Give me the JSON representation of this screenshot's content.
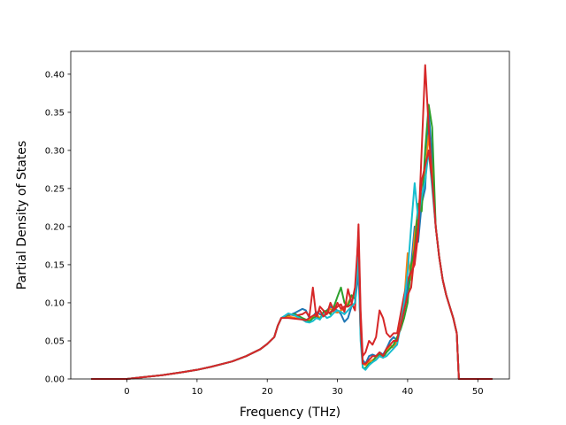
{
  "chart_data": {
    "type": "line",
    "title": "",
    "xlabel": "Frequency (THz)",
    "ylabel": "Partial Density of States",
    "xlim": [
      -8,
      54.5
    ],
    "ylim": [
      0,
      0.43
    ],
    "xticks": [
      0,
      10,
      20,
      30,
      40,
      50
    ],
    "xtick_labels": [
      "0",
      "10",
      "20",
      "30",
      "40",
      "50"
    ],
    "yticks": [
      0.0,
      0.05,
      0.1,
      0.15,
      0.2,
      0.25,
      0.3,
      0.35,
      0.4
    ],
    "ytick_labels": [
      "0.00",
      "0.05",
      "0.10",
      "0.15",
      "0.20",
      "0.25",
      "0.30",
      "0.35",
      "0.40"
    ],
    "grid": false,
    "legend": "none",
    "colors": [
      "#1f77b4",
      "#ff7f0e",
      "#2ca02c",
      "#d62728",
      "#17becf",
      "#d62728"
    ],
    "series": [
      {
        "x": [
          -5,
          0,
          2,
          5,
          8,
          10,
          12,
          15,
          17,
          19,
          20,
          21,
          21.5,
          22,
          23,
          24,
          25,
          25.5,
          26,
          26.5,
          27,
          27.5,
          28,
          28.5,
          29,
          29.5,
          30,
          30.5,
          31,
          31.5,
          32,
          32.5,
          33,
          33.3,
          33.6,
          34,
          34.5,
          35,
          35.5,
          36,
          36.5,
          37,
          37.5,
          38,
          38.5,
          39,
          39.5,
          40,
          40.5,
          41,
          41.5,
          42,
          42.5,
          43,
          43.5,
          44,
          44.5,
          45,
          45.5,
          46,
          46.5,
          47,
          47.3,
          48,
          52
        ],
        "y": [
          0,
          0,
          0.002,
          0.005,
          0.009,
          0.012,
          0.016,
          0.023,
          0.03,
          0.039,
          0.046,
          0.055,
          0.07,
          0.08,
          0.083,
          0.087,
          0.092,
          0.09,
          0.08,
          0.082,
          0.088,
          0.085,
          0.083,
          0.09,
          0.095,
          0.092,
          0.09,
          0.085,
          0.075,
          0.08,
          0.095,
          0.1,
          0.14,
          0.06,
          0.025,
          0.02,
          0.03,
          0.032,
          0.03,
          0.035,
          0.032,
          0.04,
          0.05,
          0.055,
          0.05,
          0.075,
          0.09,
          0.12,
          0.15,
          0.2,
          0.18,
          0.23,
          0.25,
          0.35,
          0.29,
          0.2,
          0.16,
          0.13,
          0.11,
          0.095,
          0.08,
          0.06,
          0.0,
          0.0,
          0.0
        ]
      },
      {
        "x": [
          -5,
          0,
          2,
          5,
          8,
          10,
          12,
          15,
          17,
          19,
          20,
          21,
          21.5,
          22,
          23,
          24,
          25,
          25.5,
          26,
          26.5,
          27,
          27.5,
          28,
          28.5,
          29,
          29.5,
          30,
          30.5,
          31,
          31.5,
          32,
          32.5,
          33,
          33.3,
          33.6,
          34,
          34.5,
          35,
          35.5,
          36,
          36.5,
          37,
          37.5,
          38,
          38.5,
          39,
          39.5,
          40,
          40.5,
          41,
          41.5,
          42,
          42.5,
          43,
          43.5,
          44,
          44.5,
          45,
          45.5,
          46,
          46.5,
          47,
          47.3,
          48,
          52
        ],
        "y": [
          0,
          0,
          0.002,
          0.005,
          0.009,
          0.012,
          0.016,
          0.023,
          0.03,
          0.039,
          0.046,
          0.055,
          0.07,
          0.08,
          0.082,
          0.08,
          0.078,
          0.076,
          0.078,
          0.082,
          0.085,
          0.08,
          0.083,
          0.088,
          0.092,
          0.088,
          0.087,
          0.09,
          0.092,
          0.1,
          0.108,
          0.112,
          0.17,
          0.07,
          0.02,
          0.018,
          0.022,
          0.025,
          0.028,
          0.03,
          0.028,
          0.035,
          0.045,
          0.04,
          0.05,
          0.08,
          0.1,
          0.165,
          0.13,
          0.19,
          0.22,
          0.26,
          0.27,
          0.32,
          0.27,
          0.2,
          0.16,
          0.13,
          0.11,
          0.095,
          0.08,
          0.06,
          0.0,
          0.0,
          0.0
        ]
      },
      {
        "x": [
          -5,
          0,
          2,
          5,
          8,
          10,
          12,
          15,
          17,
          19,
          20,
          21,
          21.5,
          22,
          23,
          24,
          25,
          25.5,
          26,
          26.5,
          27,
          27.5,
          28,
          28.5,
          29,
          29.5,
          30,
          30.5,
          31,
          31.5,
          32,
          32.5,
          33,
          33.3,
          33.6,
          34,
          34.5,
          35,
          35.5,
          36,
          36.5,
          37,
          37.5,
          38,
          38.5,
          39,
          39.5,
          40,
          40.5,
          41,
          41.5,
          42,
          42.5,
          43,
          43.5,
          44,
          44.5,
          45,
          45.5,
          46,
          46.5,
          47,
          47.3,
          48,
          52
        ],
        "y": [
          0,
          0,
          0.002,
          0.005,
          0.009,
          0.012,
          0.016,
          0.023,
          0.03,
          0.039,
          0.046,
          0.055,
          0.07,
          0.08,
          0.084,
          0.085,
          0.08,
          0.078,
          0.075,
          0.08,
          0.082,
          0.078,
          0.088,
          0.09,
          0.085,
          0.095,
          0.108,
          0.12,
          0.1,
          0.095,
          0.11,
          0.105,
          0.185,
          0.08,
          0.015,
          0.014,
          0.02,
          0.022,
          0.03,
          0.032,
          0.028,
          0.035,
          0.04,
          0.045,
          0.055,
          0.065,
          0.08,
          0.1,
          0.15,
          0.17,
          0.23,
          0.22,
          0.3,
          0.36,
          0.33,
          0.2,
          0.16,
          0.13,
          0.11,
          0.095,
          0.08,
          0.06,
          0.0,
          0.0,
          0.0
        ]
      },
      {
        "x": [
          -5,
          0,
          2,
          5,
          8,
          10,
          12,
          15,
          17,
          19,
          20,
          21,
          21.5,
          22,
          23,
          24,
          25,
          25.5,
          26,
          26.5,
          27,
          27.5,
          28,
          28.5,
          29,
          29.5,
          30,
          30.5,
          31,
          31.5,
          32,
          32.5,
          33,
          33.3,
          33.6,
          34,
          34.5,
          35,
          35.5,
          36,
          36.5,
          37,
          37.5,
          38,
          38.5,
          39,
          39.5,
          40,
          40.5,
          41,
          41.5,
          42,
          42.5,
          43,
          43.5,
          44,
          44.5,
          45,
          45.5,
          46,
          46.5,
          47,
          47.3,
          48,
          52
        ],
        "y": [
          0,
          0,
          0.002,
          0.005,
          0.009,
          0.012,
          0.016,
          0.023,
          0.03,
          0.039,
          0.046,
          0.055,
          0.07,
          0.08,
          0.085,
          0.083,
          0.085,
          0.088,
          0.082,
          0.12,
          0.08,
          0.095,
          0.09,
          0.085,
          0.1,
          0.09,
          0.095,
          0.098,
          0.088,
          0.118,
          0.1,
          0.09,
          0.203,
          0.09,
          0.03,
          0.035,
          0.05,
          0.045,
          0.055,
          0.09,
          0.08,
          0.06,
          0.055,
          0.06,
          0.06,
          0.085,
          0.11,
          0.13,
          0.14,
          0.15,
          0.19,
          0.3,
          0.412,
          0.33,
          0.26,
          0.2,
          0.16,
          0.13,
          0.11,
          0.095,
          0.08,
          0.06,
          0.0,
          0.0,
          0.0
        ]
      },
      {
        "x": [
          -5,
          0,
          2,
          5,
          8,
          10,
          12,
          15,
          17,
          19,
          20,
          21,
          21.5,
          22,
          23,
          24,
          25,
          25.5,
          26,
          26.5,
          27,
          27.5,
          28,
          28.5,
          29,
          29.5,
          30,
          30.5,
          31,
          31.5,
          32,
          32.5,
          33,
          33.3,
          33.6,
          34,
          34.5,
          35,
          35.5,
          36,
          36.5,
          37,
          37.5,
          38,
          38.5,
          39,
          39.5,
          40,
          40.5,
          41,
          41.5,
          42,
          42.5,
          43,
          43.5,
          44,
          44.5,
          45,
          45.5,
          46,
          46.5,
          47,
          47.3,
          48,
          52
        ],
        "y": [
          0,
          0,
          0.002,
          0.005,
          0.009,
          0.012,
          0.016,
          0.023,
          0.03,
          0.039,
          0.046,
          0.055,
          0.07,
          0.08,
          0.086,
          0.083,
          0.078,
          0.075,
          0.074,
          0.076,
          0.08,
          0.078,
          0.085,
          0.08,
          0.082,
          0.087,
          0.09,
          0.088,
          0.085,
          0.09,
          0.095,
          0.1,
          0.16,
          0.05,
          0.015,
          0.012,
          0.018,
          0.022,
          0.025,
          0.03,
          0.028,
          0.03,
          0.035,
          0.04,
          0.045,
          0.07,
          0.1,
          0.14,
          0.2,
          0.257,
          0.21,
          0.24,
          0.26,
          0.3,
          0.25,
          0.2,
          0.16,
          0.13,
          0.11,
          0.095,
          0.08,
          0.06,
          0.0,
          0.0,
          0.0
        ]
      },
      {
        "x": [
          -5,
          0,
          2,
          5,
          8,
          10,
          12,
          15,
          17,
          19,
          20,
          21,
          21.5,
          22,
          23,
          24,
          25,
          25.5,
          26,
          26.5,
          27,
          27.5,
          28,
          28.5,
          29,
          29.5,
          30,
          30.5,
          31,
          31.5,
          32,
          32.5,
          33,
          33.3,
          33.6,
          34,
          34.5,
          35,
          35.5,
          36,
          36.5,
          37,
          37.5,
          38,
          38.5,
          39,
          39.5,
          40,
          40.5,
          41,
          41.5,
          42,
          42.5,
          43,
          43.5,
          44,
          44.5,
          45,
          45.5,
          46,
          46.5,
          47,
          47.3,
          48,
          52
        ],
        "y": [
          0,
          0,
          0.002,
          0.005,
          0.009,
          0.012,
          0.016,
          0.023,
          0.03,
          0.039,
          0.046,
          0.055,
          0.07,
          0.08,
          0.08,
          0.079,
          0.078,
          0.077,
          0.08,
          0.083,
          0.085,
          0.09,
          0.082,
          0.086,
          0.088,
          0.09,
          0.1,
          0.092,
          0.095,
          0.095,
          0.098,
          0.12,
          0.19,
          0.07,
          0.02,
          0.02,
          0.025,
          0.03,
          0.03,
          0.035,
          0.03,
          0.04,
          0.045,
          0.05,
          0.05,
          0.07,
          0.09,
          0.11,
          0.12,
          0.165,
          0.2,
          0.26,
          0.28,
          0.3,
          0.26,
          0.2,
          0.16,
          0.13,
          0.11,
          0.095,
          0.08,
          0.06,
          0.0,
          0.0,
          0.0
        ]
      }
    ]
  }
}
